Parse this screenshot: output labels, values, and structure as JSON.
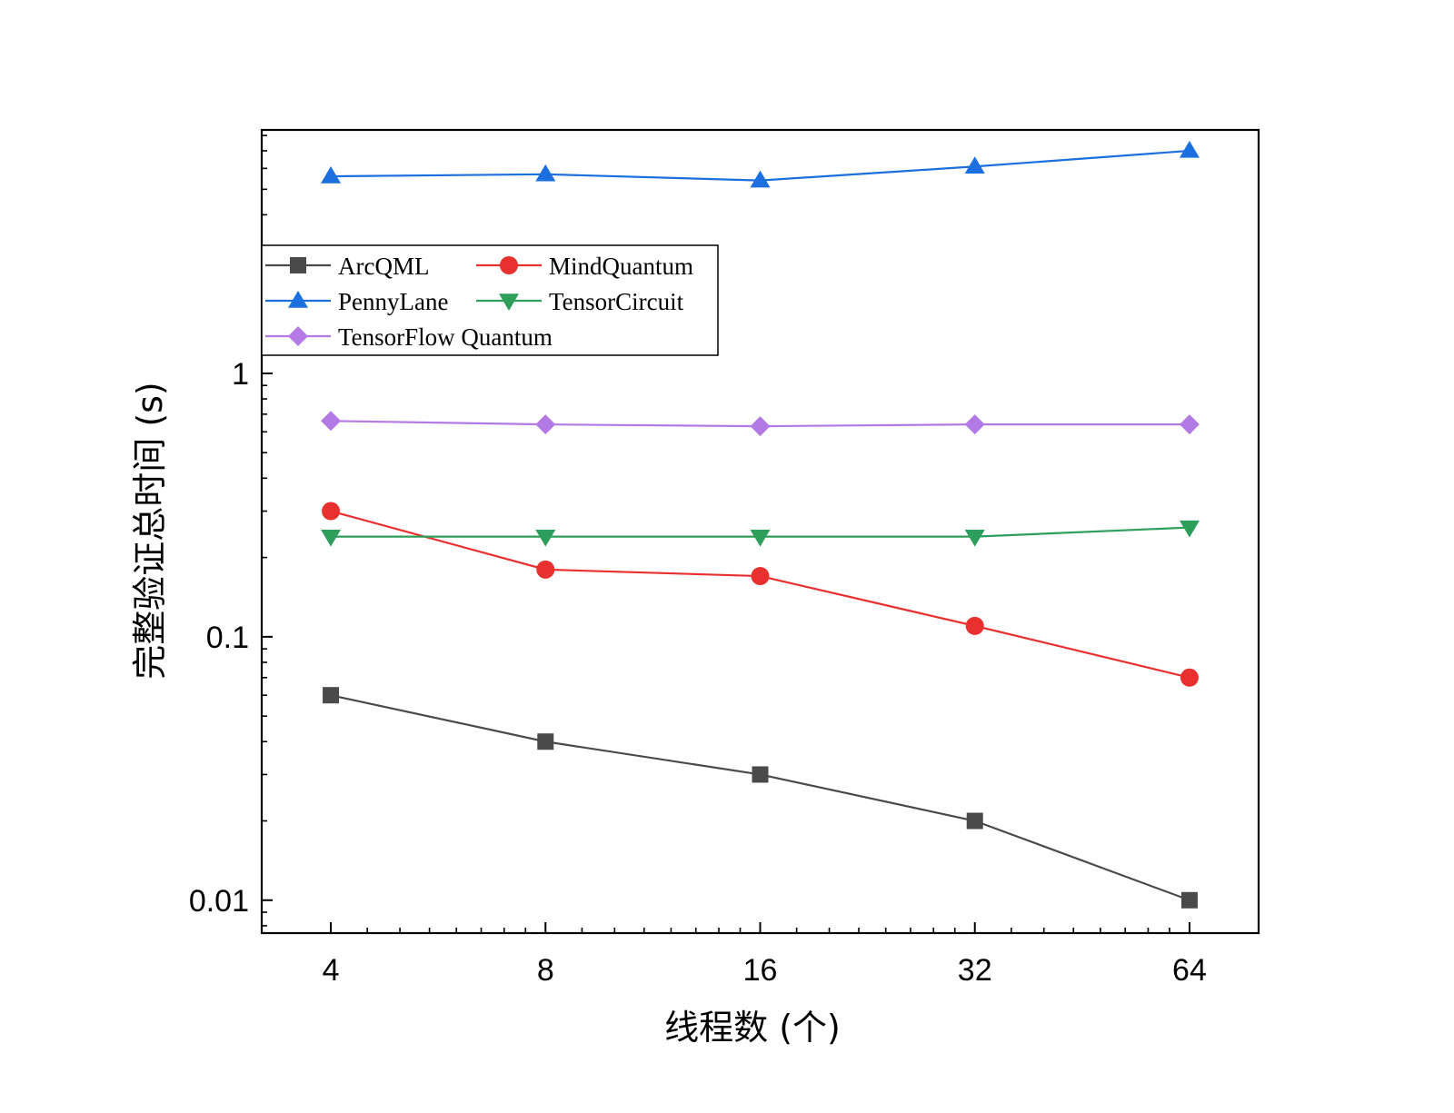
{
  "chart_data": {
    "type": "line",
    "xlabel": "线程数 (个)",
    "ylabel": "完整验证总时间 (s)",
    "x_scale": "log2",
    "y_scale": "log10",
    "x": [
      4,
      8,
      16,
      32,
      64
    ],
    "x_tick_labels": [
      "4",
      "8",
      "16",
      "32",
      "64"
    ],
    "xlim": [
      3.2,
      80
    ],
    "ylim": [
      0.0075,
      8.4
    ],
    "y_ticks": [
      0.01,
      0.1,
      1
    ],
    "y_tick_labels": [
      "0.01",
      "0.1",
      "1"
    ],
    "grid": false,
    "legend_position": "upper-left",
    "series": [
      {
        "name": "ArcQML",
        "color": "#4a4a4a",
        "marker": "square",
        "values": [
          0.06,
          0.04,
          0.03,
          0.02,
          0.01
        ]
      },
      {
        "name": "MindQuantum",
        "color": "#e8312e",
        "marker": "circle",
        "values": [
          0.3,
          0.18,
          0.17,
          0.11,
          0.07
        ]
      },
      {
        "name": "PennyLane",
        "color": "#1b6fde",
        "marker": "triangle-up",
        "values": [
          5.6,
          5.7,
          5.4,
          6.1,
          7.0
        ]
      },
      {
        "name": "TensorCircuit",
        "color": "#2e9e5b",
        "marker": "triangle-down",
        "values": [
          0.24,
          0.24,
          0.24,
          0.24,
          0.26
        ]
      },
      {
        "name": "TensorFlow Quantum",
        "color": "#b37ae6",
        "marker": "diamond",
        "values": [
          0.66,
          0.64,
          0.63,
          0.64,
          0.64
        ]
      }
    ]
  }
}
